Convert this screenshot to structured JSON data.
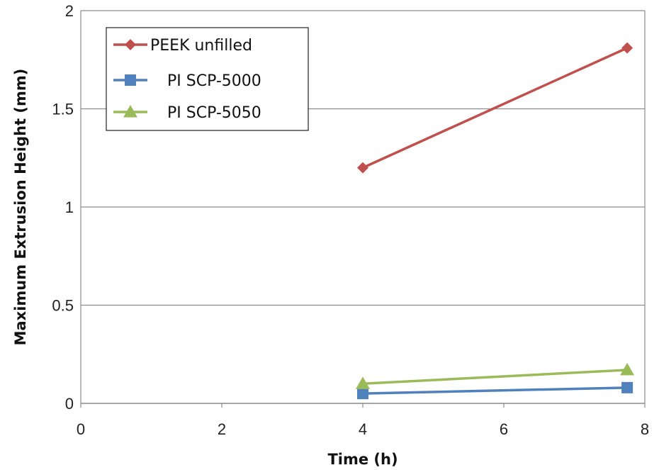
{
  "chart_data": {
    "type": "line",
    "title": "",
    "xlabel": "Time (h)",
    "ylabel": "Maximum Extrusion Height (mm)",
    "xlim": [
      0,
      8
    ],
    "ylim": [
      0,
      2
    ],
    "x_ticks": [
      "0",
      "2",
      "4",
      "6",
      "8"
    ],
    "y_ticks": [
      "0",
      "0.5",
      "1",
      "1.5",
      "2"
    ],
    "grid": "horizontal",
    "legend_position": "top-left",
    "series": [
      {
        "name": "PEEK unfilled",
        "color": "#c0504d",
        "marker": "diamond",
        "x": [
          4,
          7.75
        ],
        "y": [
          1.2,
          1.81
        ]
      },
      {
        "name": "PI SCP-5000",
        "color": "#4f81bd",
        "marker": "square",
        "x": [
          4,
          7.75
        ],
        "y": [
          0.05,
          0.08
        ]
      },
      {
        "name": "PI SCP-5050",
        "color": "#9bbb59",
        "marker": "triangle",
        "x": [
          4,
          7.75
        ],
        "y": [
          0.1,
          0.17
        ]
      }
    ]
  }
}
